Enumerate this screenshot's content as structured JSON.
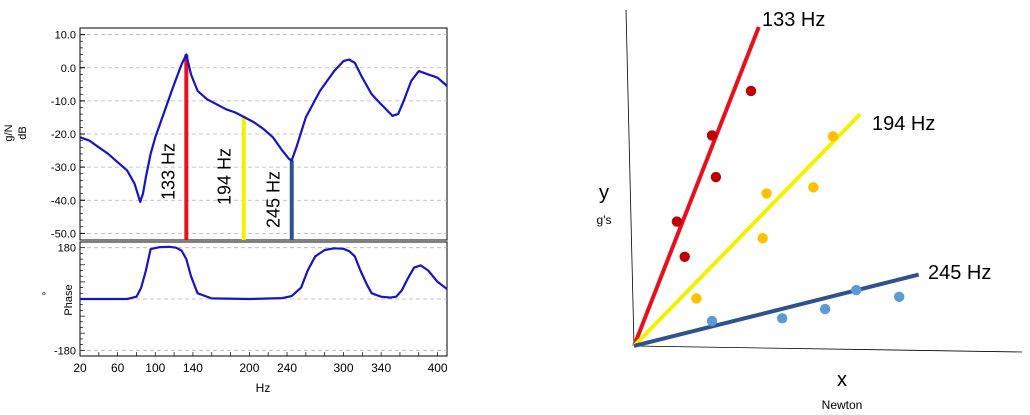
{
  "chart_data": [
    {
      "type": "line",
      "title": "",
      "ylabel_units": "g/N",
      "ylabel": "dB",
      "ylim": [
        -52,
        12
      ],
      "yticks": [
        "10.0",
        "0.0",
        "-10.0",
        "-20.0",
        "-30.0",
        "-40.0",
        "-50.0"
      ],
      "ytick_values": [
        10,
        0,
        -10,
        -20,
        -30,
        -40,
        -50
      ],
      "xlim": [
        20,
        410
      ],
      "grid": true,
      "series": [
        {
          "color": "#1414c8",
          "x": [
            20,
            30,
            40,
            50,
            60,
            70,
            78,
            84,
            87,
            90,
            95,
            100,
            110,
            120,
            128,
            133,
            138,
            145,
            155,
            165,
            175,
            185,
            195,
            205,
            215,
            225,
            235,
            242,
            245,
            250,
            260,
            275,
            290,
            300,
            306,
            312,
            320,
            330,
            340,
            352,
            358,
            364,
            372,
            380,
            390,
            400,
            410
          ],
          "values": [
            -21,
            -22,
            -24,
            -26,
            -28.5,
            -31,
            -35,
            -40.5,
            -38,
            -33,
            -26,
            -21,
            -13,
            -5,
            1,
            4,
            -2,
            -7,
            -9.5,
            -11,
            -12.5,
            -13.5,
            -15,
            -16.5,
            -18.5,
            -21,
            -25,
            -27.5,
            -28,
            -24,
            -15,
            -7,
            -1,
            2,
            2.5,
            1.5,
            -3,
            -8,
            -11,
            -14.5,
            -14,
            -10,
            -4,
            -1,
            -2,
            -3,
            -5.5
          ]
        }
      ]
    },
    {
      "type": "line",
      "title": "",
      "ylabel_units": "°",
      "ylabel": "Phase",
      "yticks": [
        "180",
        "-180"
      ],
      "ytick_values": [
        180,
        -180
      ],
      "ylim": [
        -200,
        200
      ],
      "xlim": [
        20,
        410
      ],
      "xlabel": "Hz",
      "xticks": [
        "20",
        "60",
        "100",
        "140",
        "200",
        "240",
        "300",
        "340",
        "400"
      ],
      "xtick_values": [
        20,
        60,
        100,
        140,
        200,
        240,
        300,
        340,
        400
      ],
      "grid": true,
      "series": [
        {
          "color": "#1414c8",
          "x": [
            20,
            70,
            80,
            85,
            90,
            95,
            105,
            115,
            122,
            128,
            133,
            138,
            145,
            160,
            200,
            235,
            245,
            255,
            262,
            270,
            280,
            290,
            300,
            306,
            312,
            318,
            325,
            330,
            340,
            350,
            356,
            362,
            368,
            375,
            382,
            390,
            400,
            410
          ],
          "values": [
            0,
            0,
            8,
            40,
            100,
            175,
            182,
            183,
            180,
            170,
            140,
            80,
            20,
            2,
            0,
            3,
            10,
            40,
            100,
            150,
            172,
            178,
            176,
            168,
            150,
            100,
            50,
            20,
            8,
            5,
            8,
            30,
            70,
            110,
            118,
            100,
            60,
            35
          ]
        }
      ],
      "markers": [
        {
          "label": "133 Hz",
          "x": 133,
          "color": "#e8101c"
        },
        {
          "label": "194 Hz",
          "x": 194,
          "color": "#f2f200"
        },
        {
          "label": "245 Hz",
          "x": 245,
          "color": "#2f528f"
        }
      ]
    },
    {
      "type": "scatter",
      "title": "",
      "xlabel": "x",
      "xlabel_sub": "Newton",
      "ylabel": "y",
      "ylabel_sub": "g's",
      "xlim": [
        0,
        100
      ],
      "ylim": [
        0,
        100
      ],
      "series": [
        {
          "name": "133 Hz",
          "color": "#e8101c",
          "point_color": "#c00000",
          "line": {
            "from": [
              0,
              0
            ],
            "to": [
              32,
              100
            ]
          },
          "points": [
            [
              30,
              80
            ],
            [
              20,
              66
            ],
            [
              21,
              53
            ],
            [
              11,
              39
            ],
            [
              13,
              28
            ]
          ]
        },
        {
          "name": "194 Hz",
          "color": "#f2f200",
          "point_color": "#ffc000",
          "line": {
            "from": [
              0,
              0
            ],
            "to": [
              58,
              73
            ]
          },
          "points": [
            [
              51,
              66
            ],
            [
              46,
              50
            ],
            [
              34,
              48
            ],
            [
              33,
              34
            ],
            [
              16,
              15
            ]
          ]
        },
        {
          "name": "245 Hz",
          "color": "#2f528f",
          "point_color": "#5b9bd5",
          "line": {
            "from": [
              0,
              0
            ],
            "to": [
              73,
              23
            ]
          },
          "points": [
            [
              57,
              18
            ],
            [
              68,
              16
            ],
            [
              49,
              12
            ],
            [
              38,
              9
            ],
            [
              20,
              8
            ]
          ]
        }
      ]
    }
  ]
}
